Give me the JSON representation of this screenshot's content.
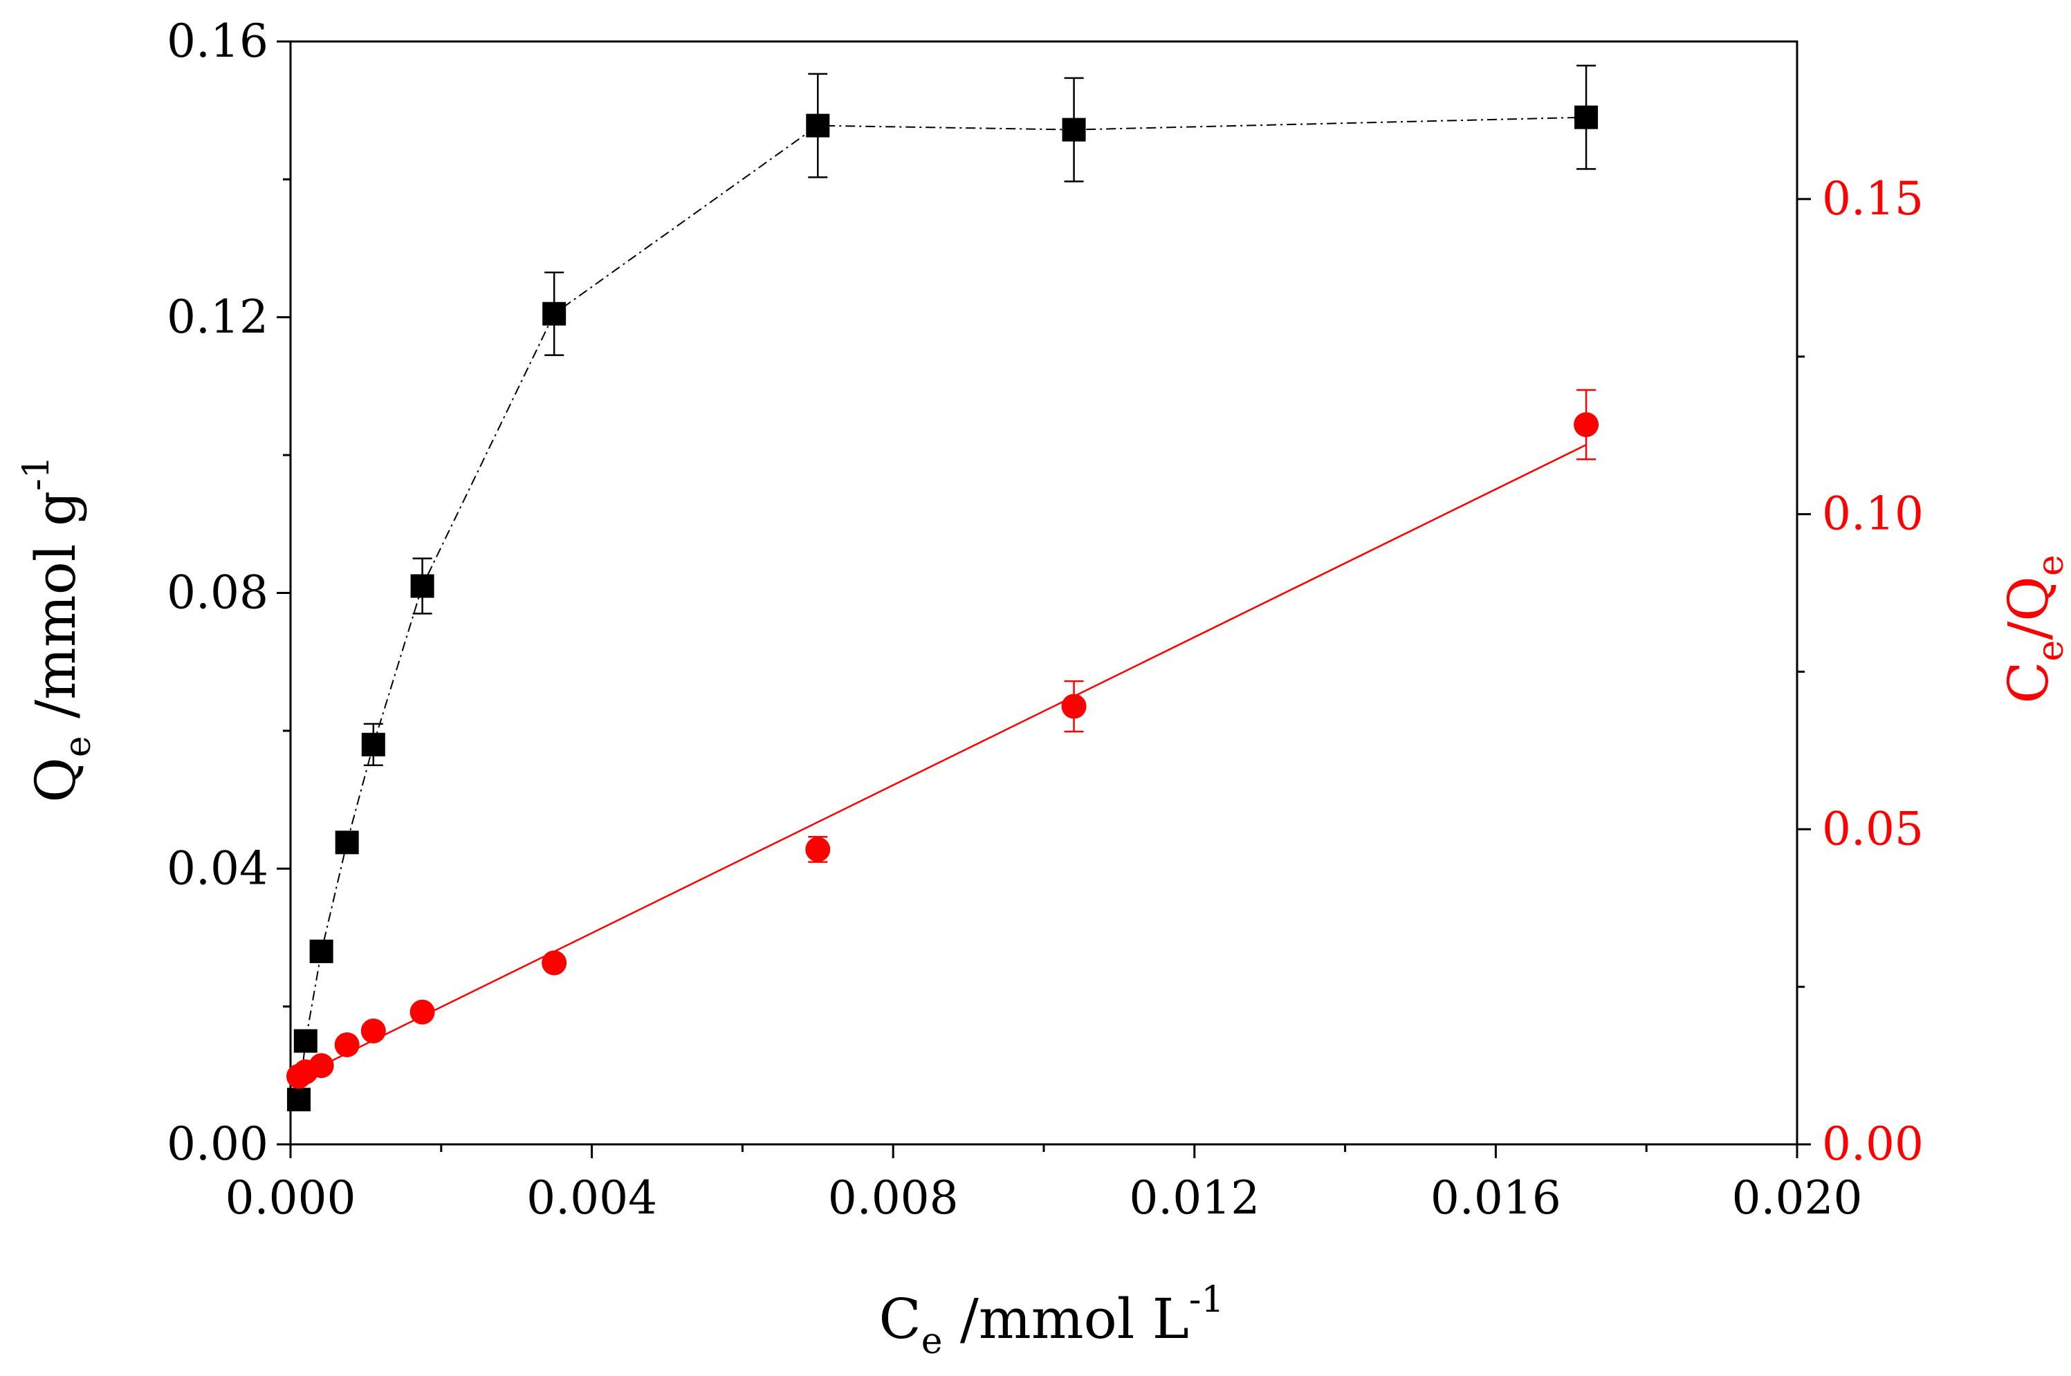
{
  "chart_data": {
    "type": "scatter",
    "colors": {
      "series1": "#000000",
      "series2": "#ff0000",
      "axis_right": "#ff0000"
    },
    "x_axis": {
      "title": "C",
      "title_sub": "e",
      "title_rest": " /mmol L",
      "title_sup": "-1",
      "range": [
        0,
        0.02
      ],
      "ticks": [
        0,
        0.004,
        0.008,
        0.012,
        0.016,
        0.02
      ],
      "tick_labels": [
        "0.000",
        "0.004",
        "0.008",
        "0.012",
        "0.016",
        "0.020"
      ]
    },
    "y_left": {
      "title": "Q",
      "title_sub": "e",
      "title_rest": " /mmol g",
      "title_sup": "-1",
      "range": [
        0,
        0.16
      ],
      "ticks": [
        0,
        0.04,
        0.08,
        0.12,
        0.16
      ],
      "tick_labels": [
        "0.00",
        "0.04",
        "0.08",
        "0.12",
        "0.16"
      ]
    },
    "y_right": {
      "title": "C",
      "title_sub": "e",
      "title_mid": "/Q",
      "title_sub2": "e",
      "range": [
        0,
        0.175
      ],
      "ticks": [
        0,
        0.05,
        0.1,
        0.15
      ],
      "tick_labels": [
        "0.00",
        "0.05",
        "0.10",
        "0.15"
      ]
    },
    "series": [
      {
        "name": "Qe",
        "axis": "left",
        "marker": "square",
        "line": "dash-dot",
        "x": [
          0.00011,
          0.0002,
          0.00041,
          0.00075,
          0.0011,
          0.00175,
          0.0035,
          0.007,
          0.0104,
          0.0172
        ],
        "y": [
          0.0065,
          0.015,
          0.028,
          0.0438,
          0.058,
          0.081,
          0.1205,
          0.1478,
          0.1472,
          0.149
        ],
        "err": [
          0,
          0,
          0,
          0.0015,
          0.003,
          0.004,
          0.006,
          0.0075,
          0.0075,
          0.0075
        ]
      },
      {
        "name": "Ce/Qe",
        "axis": "right",
        "marker": "circle",
        "line": "none",
        "x": [
          0.00011,
          0.0002,
          0.00041,
          0.00075,
          0.0011,
          0.00175,
          0.0035,
          0.007,
          0.0104,
          0.0172
        ],
        "y": [
          0.0108,
          0.0115,
          0.0125,
          0.0158,
          0.018,
          0.021,
          0.0288,
          0.0468,
          0.0695,
          0.1142
        ],
        "err": [
          0,
          0,
          0,
          0,
          0,
          0,
          0,
          0.002,
          0.004,
          0.0055
        ]
      }
    ],
    "fit_line": {
      "axis": "right",
      "color": "#ff0000",
      "x": [
        0.00011,
        0.0172
      ],
      "y": [
        0.0107,
        0.111
      ]
    }
  }
}
